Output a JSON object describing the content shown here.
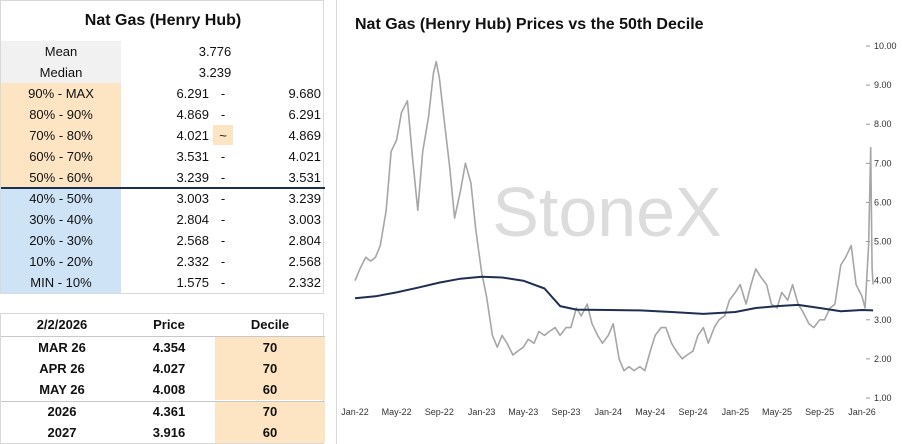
{
  "deciles_table": {
    "title": "Nat Gas (Henry Hub)",
    "mean_label": "Mean",
    "mean_value": "3.776",
    "median_label": "Median",
    "median_value": "3.239",
    "rows": [
      {
        "label": "90% - MAX",
        "low": "6.291",
        "sep": "-",
        "high": "9.680",
        "tone": "orange"
      },
      {
        "label": "80% - 90%",
        "low": "4.869",
        "sep": "-",
        "high": "6.291",
        "tone": "orange"
      },
      {
        "label": "70% - 80%",
        "low": "4.021",
        "sep": "~",
        "high": "4.869",
        "tone": "orange"
      },
      {
        "label": "60% - 70%",
        "low": "3.531",
        "sep": "-",
        "high": "4.021",
        "tone": "orange"
      },
      {
        "label": "50% - 60%",
        "low": "3.239",
        "sep": "-",
        "high": "3.531",
        "tone": "orange"
      },
      {
        "label": "40% - 50%",
        "low": "3.003",
        "sep": "-",
        "high": "3.239",
        "tone": "blue"
      },
      {
        "label": "30% - 40%",
        "low": "2.804",
        "sep": "-",
        "high": "3.003",
        "tone": "blue"
      },
      {
        "label": "20% - 30%",
        "low": "2.568",
        "sep": "-",
        "high": "2.804",
        "tone": "blue"
      },
      {
        "label": "10% - 20%",
        "low": "2.332",
        "sep": "-",
        "high": "2.568",
        "tone": "blue"
      },
      {
        "label": "MIN - 10%",
        "low": "1.575",
        "sep": "-",
        "high": "2.332",
        "tone": "blue"
      }
    ]
  },
  "contracts_table": {
    "headers": [
      "2/2/2026",
      "Price",
      "Decile"
    ],
    "rows": [
      {
        "name": "MAR 26",
        "price": "4.354",
        "decile": "70"
      },
      {
        "name": "APR 26",
        "price": "4.027",
        "decile": "70"
      },
      {
        "name": "MAY 26",
        "price": "4.008",
        "decile": "60"
      },
      {
        "name": "2026",
        "price": "4.361",
        "decile": "70"
      },
      {
        "name": "2027",
        "price": "3.916",
        "decile": "60"
      }
    ]
  },
  "watermark": "StoneX",
  "colors": {
    "price": "#a6a6a6",
    "decile": "#1f2f4f",
    "orange": "#fde5c4",
    "blue": "#cfe3f6"
  },
  "chart_data": {
    "type": "line",
    "title": "Nat Gas (Henry Hub) Prices vs the 50th Decile",
    "x_ticks": [
      "Jan-22",
      "May-22",
      "Sep-22",
      "Jan-23",
      "May-23",
      "Sep-23",
      "Jan-24",
      "May-24",
      "Sep-24",
      "Jan-25",
      "May-25",
      "Sep-25",
      "Jan-26"
    ],
    "y_ticks": [
      "1.00",
      "2.00",
      "3.00",
      "4.00",
      "5.00",
      "6.00",
      "7.00",
      "8.00",
      "9.00",
      "10.00"
    ],
    "ylim": [
      1,
      10
    ],
    "series": [
      {
        "key": "price",
        "values": [
          [
            "2022-01-01",
            4.0
          ],
          [
            "2022-01-15",
            4.3
          ],
          [
            "2022-02-01",
            4.6
          ],
          [
            "2022-02-15",
            4.5
          ],
          [
            "2022-03-01",
            4.6
          ],
          [
            "2022-03-15",
            4.9
          ],
          [
            "2022-04-01",
            5.8
          ],
          [
            "2022-04-15",
            7.3
          ],
          [
            "2022-05-01",
            7.6
          ],
          [
            "2022-05-15",
            8.3
          ],
          [
            "2022-06-01",
            8.6
          ],
          [
            "2022-06-15",
            7.2
          ],
          [
            "2022-07-01",
            5.8
          ],
          [
            "2022-07-15",
            7.3
          ],
          [
            "2022-08-01",
            8.2
          ],
          [
            "2022-08-15",
            9.3
          ],
          [
            "2022-08-23",
            9.6
          ],
          [
            "2022-09-01",
            9.2
          ],
          [
            "2022-09-15",
            8.1
          ],
          [
            "2022-10-01",
            6.9
          ],
          [
            "2022-10-15",
            5.6
          ],
          [
            "2022-11-01",
            6.3
          ],
          [
            "2022-11-15",
            7.0
          ],
          [
            "2022-12-01",
            6.5
          ],
          [
            "2022-12-15",
            5.3
          ],
          [
            "2023-01-01",
            4.2
          ],
          [
            "2023-01-15",
            3.6
          ],
          [
            "2023-02-01",
            2.6
          ],
          [
            "2023-02-15",
            2.3
          ],
          [
            "2023-03-01",
            2.6
          ],
          [
            "2023-03-15",
            2.4
          ],
          [
            "2023-04-01",
            2.1
          ],
          [
            "2023-04-15",
            2.2
          ],
          [
            "2023-05-01",
            2.3
          ],
          [
            "2023-05-15",
            2.5
          ],
          [
            "2023-06-01",
            2.4
          ],
          [
            "2023-06-15",
            2.7
          ],
          [
            "2023-07-01",
            2.6
          ],
          [
            "2023-07-15",
            2.7
          ],
          [
            "2023-08-01",
            2.8
          ],
          [
            "2023-08-15",
            2.6
          ],
          [
            "2023-09-01",
            2.8
          ],
          [
            "2023-09-15",
            2.8
          ],
          [
            "2023-10-01",
            3.3
          ],
          [
            "2023-10-15",
            3.1
          ],
          [
            "2023-11-01",
            3.4
          ],
          [
            "2023-11-15",
            2.9
          ],
          [
            "2023-12-01",
            2.6
          ],
          [
            "2023-12-15",
            2.4
          ],
          [
            "2024-01-01",
            2.6
          ],
          [
            "2024-01-15",
            2.9
          ],
          [
            "2024-02-01",
            2.0
          ],
          [
            "2024-02-15",
            1.7
          ],
          [
            "2024-03-01",
            1.8
          ],
          [
            "2024-03-15",
            1.7
          ],
          [
            "2024-04-01",
            1.8
          ],
          [
            "2024-04-15",
            1.7
          ],
          [
            "2024-05-01",
            2.2
          ],
          [
            "2024-05-15",
            2.6
          ],
          [
            "2024-06-01",
            2.8
          ],
          [
            "2024-06-15",
            2.8
          ],
          [
            "2024-07-01",
            2.4
          ],
          [
            "2024-07-15",
            2.2
          ],
          [
            "2024-08-01",
            2.0
          ],
          [
            "2024-08-15",
            2.1
          ],
          [
            "2024-09-01",
            2.2
          ],
          [
            "2024-09-15",
            2.6
          ],
          [
            "2024-10-01",
            2.8
          ],
          [
            "2024-10-15",
            2.4
          ],
          [
            "2024-11-01",
            2.8
          ],
          [
            "2024-11-15",
            3.0
          ],
          [
            "2024-12-01",
            3.1
          ],
          [
            "2024-12-15",
            3.5
          ],
          [
            "2025-01-01",
            3.7
          ],
          [
            "2025-01-15",
            3.9
          ],
          [
            "2025-02-01",
            3.4
          ],
          [
            "2025-02-15",
            3.9
          ],
          [
            "2025-03-01",
            4.3
          ],
          [
            "2025-03-15",
            4.1
          ],
          [
            "2025-04-01",
            3.9
          ],
          [
            "2025-04-15",
            3.4
          ],
          [
            "2025-05-01",
            3.3
          ],
          [
            "2025-05-15",
            3.7
          ],
          [
            "2025-06-01",
            3.5
          ],
          [
            "2025-06-15",
            3.9
          ],
          [
            "2025-07-01",
            3.4
          ],
          [
            "2025-07-15",
            3.2
          ],
          [
            "2025-08-01",
            2.9
          ],
          [
            "2025-08-15",
            2.8
          ],
          [
            "2025-09-01",
            3.0
          ],
          [
            "2025-09-15",
            3.0
          ],
          [
            "2025-10-01",
            3.3
          ],
          [
            "2025-10-15",
            3.4
          ],
          [
            "2025-11-01",
            4.4
          ],
          [
            "2025-11-15",
            4.6
          ],
          [
            "2025-12-01",
            4.9
          ],
          [
            "2025-12-15",
            3.9
          ],
          [
            "2026-01-01",
            3.6
          ],
          [
            "2026-01-10",
            3.3
          ],
          [
            "2026-01-20",
            4.9
          ],
          [
            "2026-01-26",
            7.4
          ],
          [
            "2026-01-30",
            4.3
          ],
          [
            "2026-02-02",
            3.9
          ]
        ]
      },
      {
        "key": "decile",
        "values": [
          [
            "2022-01-01",
            3.55
          ],
          [
            "2022-03-01",
            3.6
          ],
          [
            "2022-05-01",
            3.7
          ],
          [
            "2022-07-01",
            3.82
          ],
          [
            "2022-09-01",
            3.95
          ],
          [
            "2022-11-01",
            4.05
          ],
          [
            "2023-01-01",
            4.1
          ],
          [
            "2023-03-01",
            4.08
          ],
          [
            "2023-05-01",
            4.0
          ],
          [
            "2023-07-01",
            3.8
          ],
          [
            "2023-08-15",
            3.35
          ],
          [
            "2023-10-01",
            3.26
          ],
          [
            "2024-01-01",
            3.25
          ],
          [
            "2024-04-01",
            3.24
          ],
          [
            "2024-07-01",
            3.2
          ],
          [
            "2024-10-01",
            3.15
          ],
          [
            "2025-01-01",
            3.2
          ],
          [
            "2025-03-01",
            3.3
          ],
          [
            "2025-05-01",
            3.35
          ],
          [
            "2025-07-01",
            3.38
          ],
          [
            "2025-09-01",
            3.3
          ],
          [
            "2025-11-01",
            3.22
          ],
          [
            "2026-01-01",
            3.25
          ],
          [
            "2026-02-02",
            3.24
          ]
        ]
      }
    ]
  }
}
